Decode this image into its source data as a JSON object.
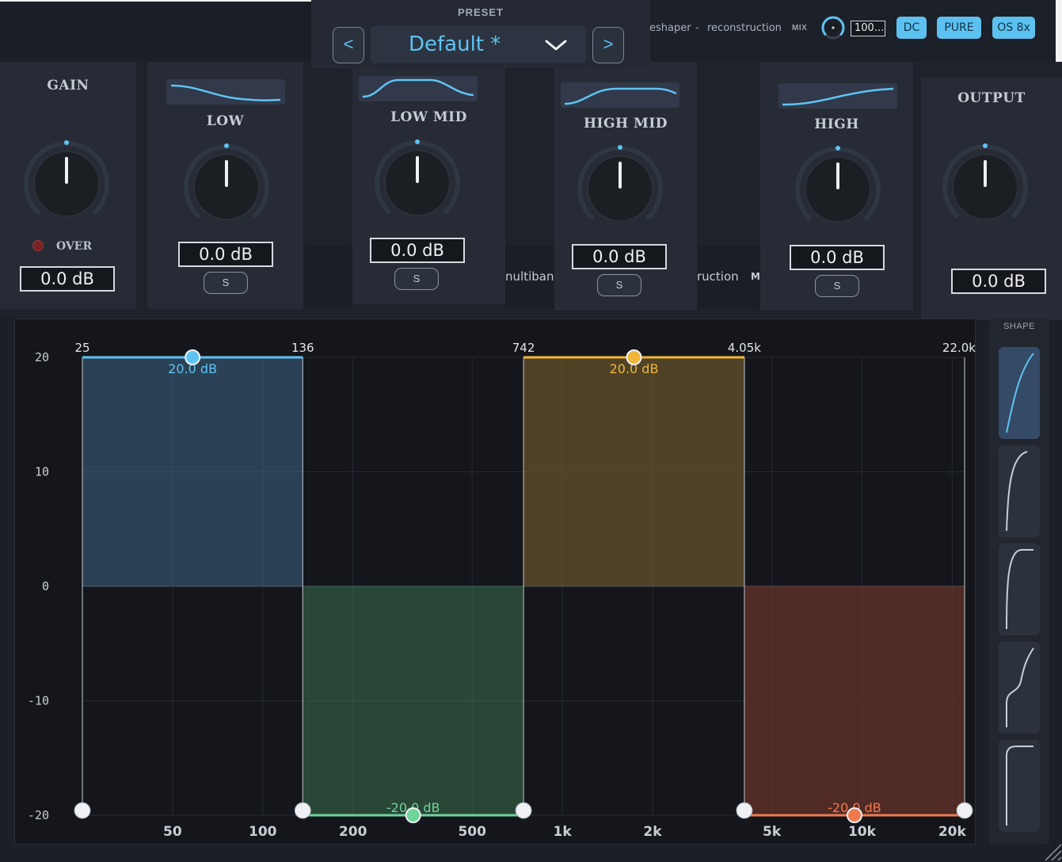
{
  "header": {
    "chain_left": "eshaper",
    "chain_sep": "-",
    "chain_right": "reconstruction",
    "mix_label": "MIX",
    "mix_value": "100...",
    "buttons": {
      "dc": "DC",
      "pure": "PURE",
      "os": "OS 8x"
    }
  },
  "preset": {
    "label": "PRESET",
    "prev": "<",
    "next": ">",
    "name": "Default  *"
  },
  "gain": {
    "title": "GAIN",
    "over_label": "OVER",
    "value": "0.0 dB"
  },
  "bands": [
    {
      "title": "LOW",
      "value": "0.0 dB",
      "solo": "S"
    },
    {
      "title": "LOW MID",
      "value": "0.0 dB",
      "solo": "S"
    },
    {
      "title": "HIGH MID",
      "value": "0.0 dB",
      "solo": "S"
    },
    {
      "title": "HIGH",
      "value": "0.0 dB",
      "solo": "S"
    }
  ],
  "output": {
    "title": "OUTPUT",
    "value": "0.0 dB"
  },
  "ghost_text": {
    "a": "nultibanc",
    "b": "ruction",
    "c": "M"
  },
  "colors": {
    "accent": "#5ec3f2",
    "low": "#5ec3f2",
    "low_mid": "#6fd49a",
    "high_mid": "#f0b63a",
    "high": "#f07a4e"
  },
  "shape": {
    "label": "SHAPE",
    "active_index": 0,
    "count": 5
  },
  "chart_data": {
    "type": "area",
    "x_scale": "log",
    "xlim": [
      25,
      22000
    ],
    "ylim": [
      -20,
      20
    ],
    "x_ticks": [
      {
        "value": 50,
        "label": "50"
      },
      {
        "value": 100,
        "label": "100"
      },
      {
        "value": 200,
        "label": "200"
      },
      {
        "value": 500,
        "label": "500"
      },
      {
        "value": 1000,
        "label": "1k"
      },
      {
        "value": 2000,
        "label": "2k"
      },
      {
        "value": 5000,
        "label": "5k"
      },
      {
        "value": 10000,
        "label": "10k"
      },
      {
        "value": 20000,
        "label": "20k"
      }
    ],
    "y_ticks": [
      20,
      10,
      0,
      -10,
      -20
    ],
    "crossovers": [
      {
        "value": 25,
        "label": "25"
      },
      {
        "value": 136,
        "label": "136"
      },
      {
        "value": 742,
        "label": "742"
      },
      {
        "value": 4050,
        "label": "4.05k"
      },
      {
        "value": 22000,
        "label": "22.0k"
      }
    ],
    "series": [
      {
        "band": "low",
        "x_start": 25,
        "x_end": 136,
        "value": 20.0,
        "label": "20.0 dB"
      },
      {
        "band": "low_mid",
        "x_start": 136,
        "x_end": 742,
        "value": -20.0,
        "label": "-20.0 dB"
      },
      {
        "band": "high_mid",
        "x_start": 742,
        "x_end": 4050,
        "value": 20.0,
        "label": "20.0 dB"
      },
      {
        "band": "high",
        "x_start": 4050,
        "x_end": 22000,
        "value": -20.0,
        "label": "-20.0 dB"
      }
    ],
    "grid": true
  }
}
